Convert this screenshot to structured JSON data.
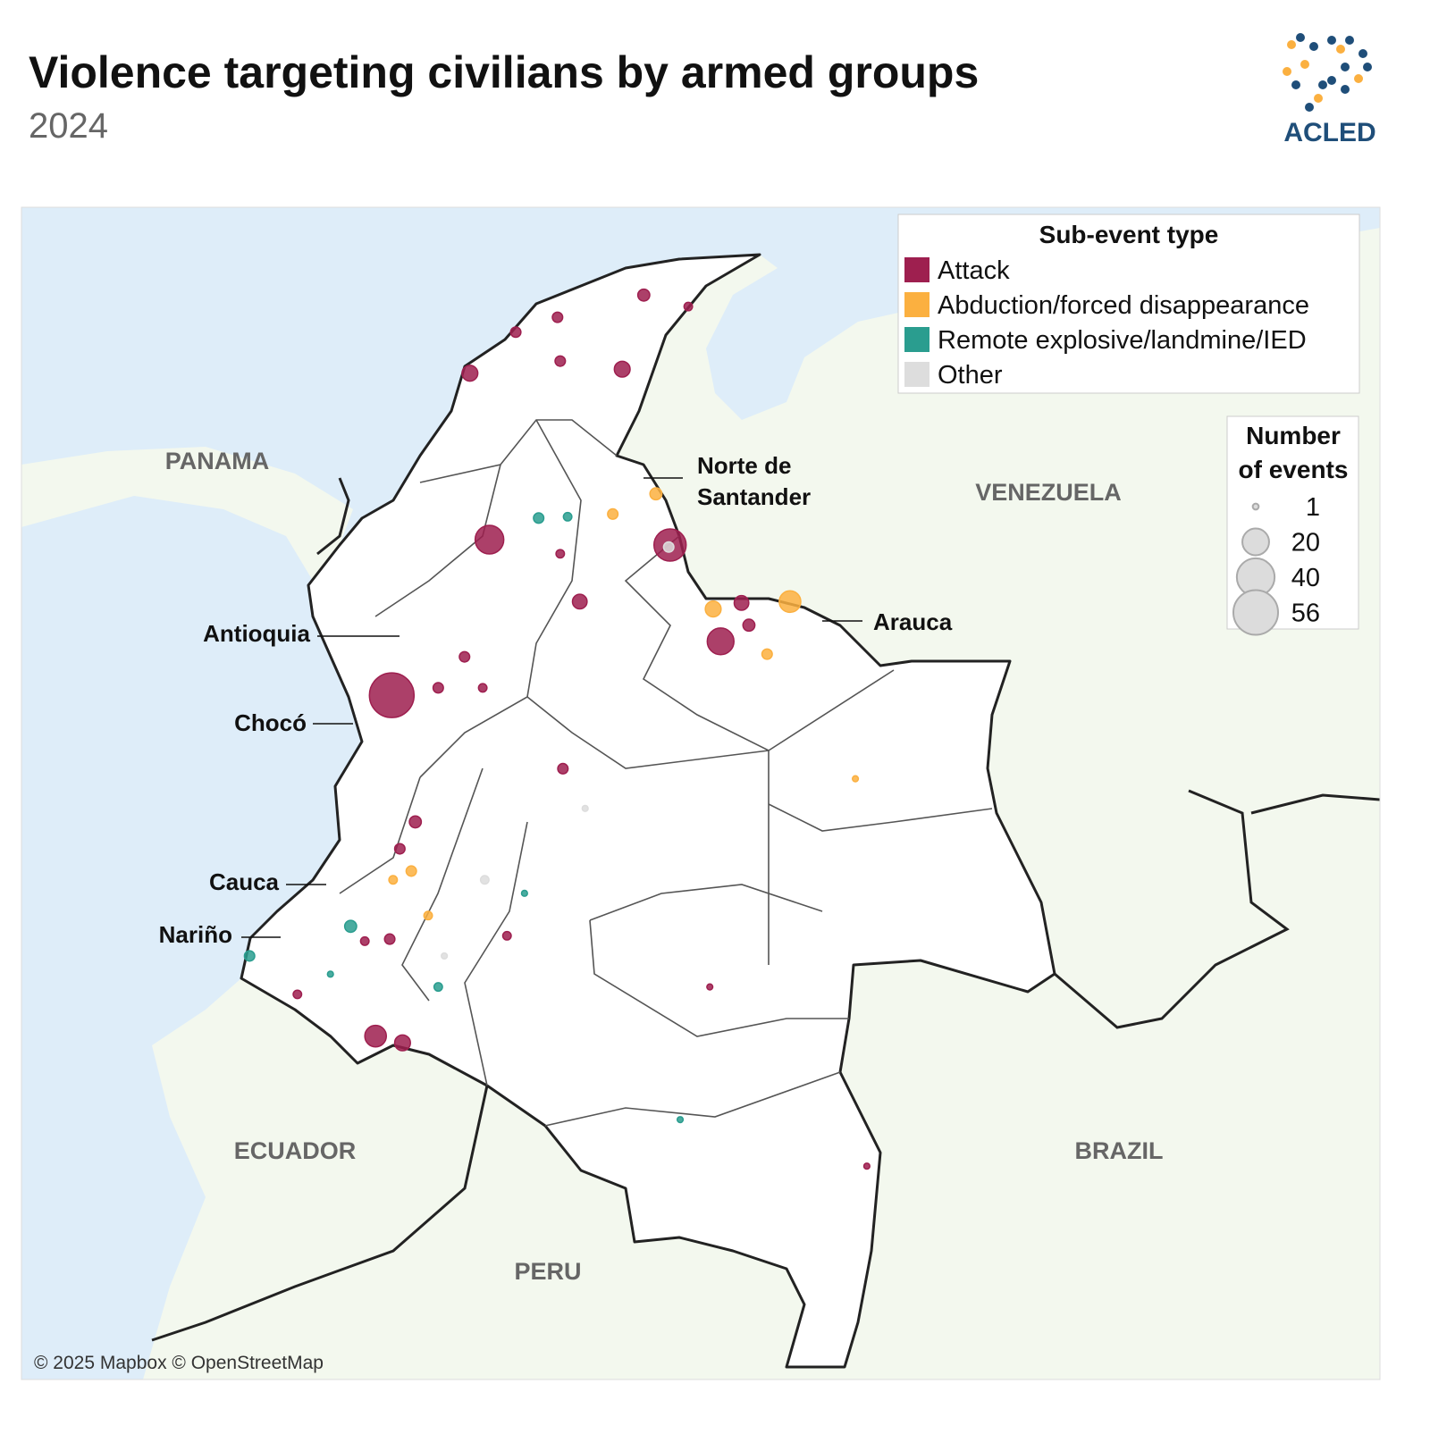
{
  "map_data": {
    "title": "Violence targeting civilians by armed groups",
    "subtitle": "2024",
    "logo": "ACLED",
    "attribution": "© 2025 Mapbox © OpenStreetMap",
    "countries": [
      "PANAMA",
      "VENEZUELA",
      "ECUADOR",
      "BRAZIL",
      "PERU"
    ],
    "regions": [
      "Norte de",
      "Santander",
      "Arauca",
      "Antioquia",
      "Chocó",
      "Cauca",
      "Nariño"
    ],
    "legend": {
      "title": "Sub-event type",
      "series": [
        {
          "name": "Attack",
          "color": "#9e1f4f"
        },
        {
          "name": "Abduction/forced disappearance",
          "color": "#fbb040"
        },
        {
          "name": "Remote explosive/landmine/IED",
          "color": "#2a9d8f"
        },
        {
          "name": "Other",
          "color": "#dddddd"
        }
      ]
    },
    "size_legend": {
      "title_lines": [
        "Number",
        "of events"
      ],
      "values": [
        1,
        20,
        40,
        56
      ]
    },
    "events": {
      "type": [
        "Attack",
        "Attack",
        "Attack",
        "Attack",
        "Abduction/forced disappearance",
        "Attack",
        "Attack",
        "Attack",
        "Attack",
        "Abduction/forced disappearance",
        "Attack",
        "Attack",
        "Attack",
        "Abduction/forced disappearance",
        "Remote explosive/landmine/IED",
        "Remote explosive/landmine/IED",
        "Remote explosive/landmine/IED",
        "Attack",
        "Attack",
        "Attack",
        "Abduction/forced disappearance",
        "Attack",
        "Attack",
        "Attack",
        "Attack",
        "Attack",
        "Attack",
        "Abduction/forced disappearance",
        "Abduction/forced disappearance",
        "Abduction/forced disappearance",
        "Attack",
        "Attack",
        "Other",
        "Other",
        "Other",
        "Attack",
        "Abduction/forced disappearance",
        "Attack",
        "Remote explosive/landmine/IED",
        "Remote explosive/landmine/IED",
        "Remote explosive/landmine/IED",
        "Remote explosive/landmine/IED",
        "Attack",
        "Attack",
        "Attack",
        "Abduction/forced disappearance",
        "Attack",
        "Remote explosive/landmine/IED",
        "Attack",
        "Other"
      ],
      "lon": [
        -76.7,
        -75.25,
        -72.57,
        -71.82,
        -70.79,
        -75.54,
        -73.28,
        -76.94,
        -76.54,
        -71.93,
        -73.91,
        -72.96,
        -74.24,
        -72.78,
        -74.52,
        -78.81,
        -77.31,
        -76.35,
        -71.51,
        -71.4,
        -71.13,
        -74.2,
        -74.86,
        -72.3,
        -75.62,
        -76.01,
        -76.58,
        -76.41,
        -76.68,
        -76.16,
        -74.99,
        -74.16,
        -75.32,
        -73.83,
        -75.92,
        -71.98,
        -69.82,
        -69.65,
        -72.42,
        -76.01,
        -77.61,
        -74.73,
        -76.73,
        -77.1,
        -78.1,
        -73.42,
        -74.2,
        -74.09,
        -75.35,
        -72.59
      ],
      "lat": [
        5.67,
        7.98,
        7.9,
        6.47,
        7.06,
        10.45,
        10.51,
        0.61,
        0.51,
        6.95,
        7.06,
        11.61,
        11.28,
        8.66,
        8.3,
        1.8,
        2.24,
        3.79,
        7.04,
        6.71,
        6.28,
        10.63,
        11.06,
        11.44,
        6.24,
        5.78,
        3.39,
        3.06,
        2.93,
        2.4,
        2.1,
        4.58,
        2.93,
        3.99,
        1.8,
        1.34,
        4.43,
        -1.32,
        -0.63,
        1.34,
        1.53,
        2.73,
        2.05,
        2.02,
        1.23,
        8.36,
        7.77,
        8.32,
        5.78,
        7.87
      ],
      "count": [
        56,
        23,
        29,
        20,
        13,
        7,
        7,
        13,
        7,
        7,
        6,
        4,
        3,
        4,
        3,
        3,
        4,
        4,
        6,
        4,
        3,
        3,
        3,
        2,
        3,
        3,
        3,
        3,
        2,
        2,
        2,
        3,
        2,
        1,
        1,
        1,
        1,
        1,
        1,
        2,
        1,
        1,
        3,
        2,
        2,
        3,
        2,
        2,
        2,
        3
      ]
    }
  }
}
